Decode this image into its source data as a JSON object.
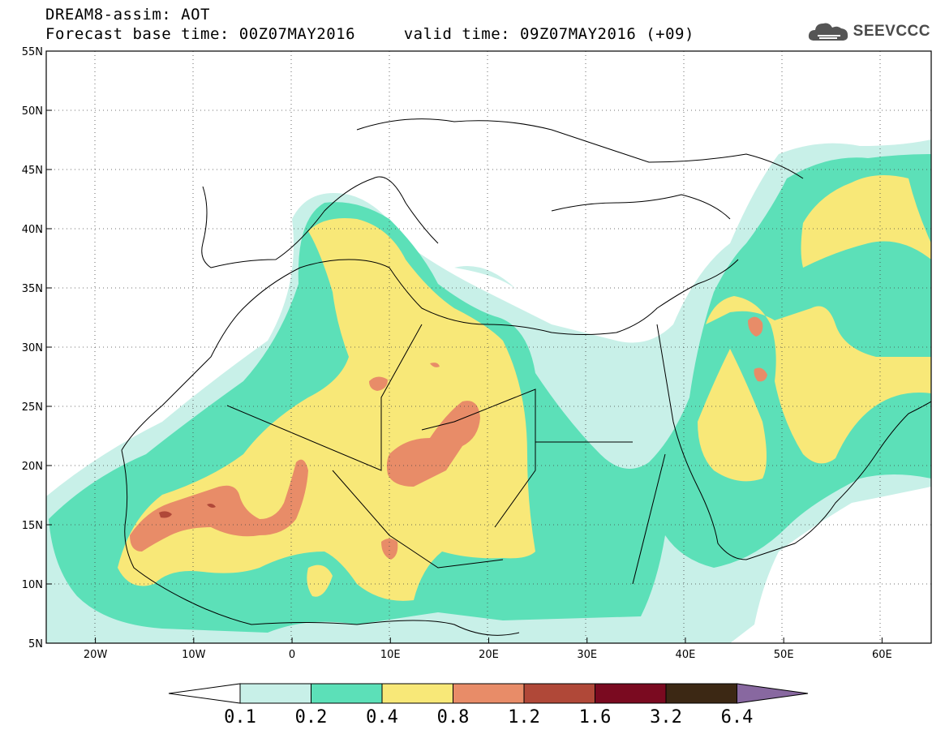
{
  "header": {
    "title_line1": "DREAM8-assim: AOT",
    "title_line2": "Forecast base time: 00Z07MAY2016     valid time: 09Z07MAY2016 (+09)",
    "brand": "SEEVCCC",
    "brand_icon": "cloud-logo-icon"
  },
  "map": {
    "lon_range": [
      -25,
      65
    ],
    "lat_range": [
      5,
      55
    ],
    "lat_ticks": [
      {
        "lat": 55,
        "label": "55N"
      },
      {
        "lat": 50,
        "label": "50N"
      },
      {
        "lat": 45,
        "label": "45N"
      },
      {
        "lat": 40,
        "label": "40N"
      },
      {
        "lat": 35,
        "label": "35N"
      },
      {
        "lat": 30,
        "label": "30N"
      },
      {
        "lat": 25,
        "label": "25N"
      },
      {
        "lat": 20,
        "label": "20N"
      },
      {
        "lat": 15,
        "label": "15N"
      },
      {
        "lat": 10,
        "label": "10N"
      },
      {
        "lat": 5,
        "label": "5N"
      }
    ],
    "lon_ticks": [
      {
        "lon": -20,
        "label": "20W"
      },
      {
        "lon": -10,
        "label": "10W"
      },
      {
        "lon": 0,
        "label": "0"
      },
      {
        "lon": 10,
        "label": "10E"
      },
      {
        "lon": 20,
        "label": "20E"
      },
      {
        "lon": 30,
        "label": "30E"
      },
      {
        "lon": 40,
        "label": "40E"
      },
      {
        "lon": 50,
        "label": "50E"
      },
      {
        "lon": 60,
        "label": "60E"
      }
    ],
    "grid": "dotted",
    "variable": "AOT"
  },
  "colorbar": {
    "labels": [
      "0.1",
      "0.2",
      "0.4",
      "0.8",
      "1.2",
      "1.6",
      "3.2",
      "6.4"
    ],
    "colors": [
      "#ffffff",
      "#c8f0e8",
      "#5ce0b8",
      "#f8e878",
      "#e88c68",
      "#b04838",
      "#7a0a20",
      "#3c2814",
      "#8868a0"
    ]
  }
}
